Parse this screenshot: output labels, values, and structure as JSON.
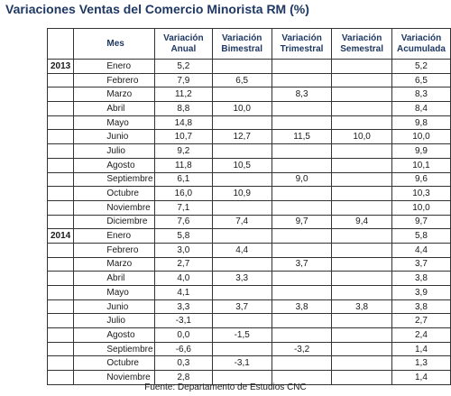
{
  "title": "Variaciones Ventas del Comercio Minorista RM (%)",
  "headers": {
    "mes": "Mes",
    "anual": "Variación Anual",
    "bimestral": "Variación Bimestral",
    "trimestral": "Variación Trimestral",
    "semestral": "Variación Semestral",
    "acumulada": "Variación Acumulada"
  },
  "rows": [
    {
      "year": "2013",
      "month": "Enero",
      "anual": "5,2",
      "bimestral": "",
      "trimestral": "",
      "semestral": "",
      "acumulada": "5,2"
    },
    {
      "year": "",
      "month": "Febrero",
      "anual": "7,9",
      "bimestral": "6,5",
      "trimestral": "",
      "semestral": "",
      "acumulada": "6,5"
    },
    {
      "year": "",
      "month": "Marzo",
      "anual": "11,2",
      "bimestral": "",
      "trimestral": "8,3",
      "semestral": "",
      "acumulada": "8,3"
    },
    {
      "year": "",
      "month": "Abril",
      "anual": "8,8",
      "bimestral": "10,0",
      "trimestral": "",
      "semestral": "",
      "acumulada": "8,4"
    },
    {
      "year": "",
      "month": "Mayo",
      "anual": "14,8",
      "bimestral": "",
      "trimestral": "",
      "semestral": "",
      "acumulada": "9,8"
    },
    {
      "year": "",
      "month": "Junio",
      "anual": "10,7",
      "bimestral": "12,7",
      "trimestral": "11,5",
      "semestral": "10,0",
      "acumulada": "10,0"
    },
    {
      "year": "",
      "month": "Julio",
      "anual": "9,2",
      "bimestral": "",
      "trimestral": "",
      "semestral": "",
      "acumulada": "9,9"
    },
    {
      "year": "",
      "month": "Agosto",
      "anual": "11,8",
      "bimestral": "10,5",
      "trimestral": "",
      "semestral": "",
      "acumulada": "10,1"
    },
    {
      "year": "",
      "month": "Septiembre",
      "anual": "6,1",
      "bimestral": "",
      "trimestral": "9,0",
      "semestral": "",
      "acumulada": "9,6"
    },
    {
      "year": "",
      "month": "Octubre",
      "anual": "16,0",
      "bimestral": "10,9",
      "trimestral": "",
      "semestral": "",
      "acumulada": "10,3"
    },
    {
      "year": "",
      "month": "Noviembre",
      "anual": "7,1",
      "bimestral": "",
      "trimestral": "",
      "semestral": "",
      "acumulada": "10,0"
    },
    {
      "year": "",
      "month": "Diciembre",
      "anual": "7,6",
      "bimestral": "7,4",
      "trimestral": "9,7",
      "semestral": "9,4",
      "acumulada": "9,7"
    },
    {
      "year": "2014",
      "month": "Enero",
      "anual": "5,8",
      "bimestral": "",
      "trimestral": "",
      "semestral": "",
      "acumulada": "5,8"
    },
    {
      "year": "",
      "month": "Febrero",
      "anual": "3,0",
      "bimestral": "4,4",
      "trimestral": "",
      "semestral": "",
      "acumulada": "4,4"
    },
    {
      "year": "",
      "month": "Marzo",
      "anual": "2,7",
      "bimestral": "",
      "trimestral": "3,7",
      "semestral": "",
      "acumulada": "3,7"
    },
    {
      "year": "",
      "month": "Abril",
      "anual": "4,0",
      "bimestral": "3,3",
      "trimestral": "",
      "semestral": "",
      "acumulada": "3,8"
    },
    {
      "year": "",
      "month": "Mayo",
      "anual": "4,1",
      "bimestral": "",
      "trimestral": "",
      "semestral": "",
      "acumulada": "3,9"
    },
    {
      "year": "",
      "month": "Junio",
      "anual": "3,3",
      "bimestral": "3,7",
      "trimestral": "3,8",
      "semestral": "3,8",
      "acumulada": "3,8"
    },
    {
      "year": "",
      "month": "Julio",
      "anual": "-3,1",
      "bimestral": "",
      "trimestral": "",
      "semestral": "",
      "acumulada": "2,7"
    },
    {
      "year": "",
      "month": "Agosto",
      "anual": "0,0",
      "bimestral": "-1,5",
      "trimestral": "",
      "semestral": "",
      "acumulada": "2,4"
    },
    {
      "year": "",
      "month": "Septiembre",
      "anual": "-6,6",
      "bimestral": "",
      "trimestral": "-3,2",
      "semestral": "",
      "acumulada": "1,4"
    },
    {
      "year": "",
      "month": "Octubre",
      "anual": "0,3",
      "bimestral": "-3,1",
      "trimestral": "",
      "semestral": "",
      "acumulada": "1,3"
    },
    {
      "year": "",
      "month": "Noviembre",
      "anual": "2,8",
      "bimestral": "",
      "trimestral": "",
      "semestral": "",
      "acumulada": "1,4"
    }
  ],
  "source": "Fuente: Departamento de Estudios CNC"
}
